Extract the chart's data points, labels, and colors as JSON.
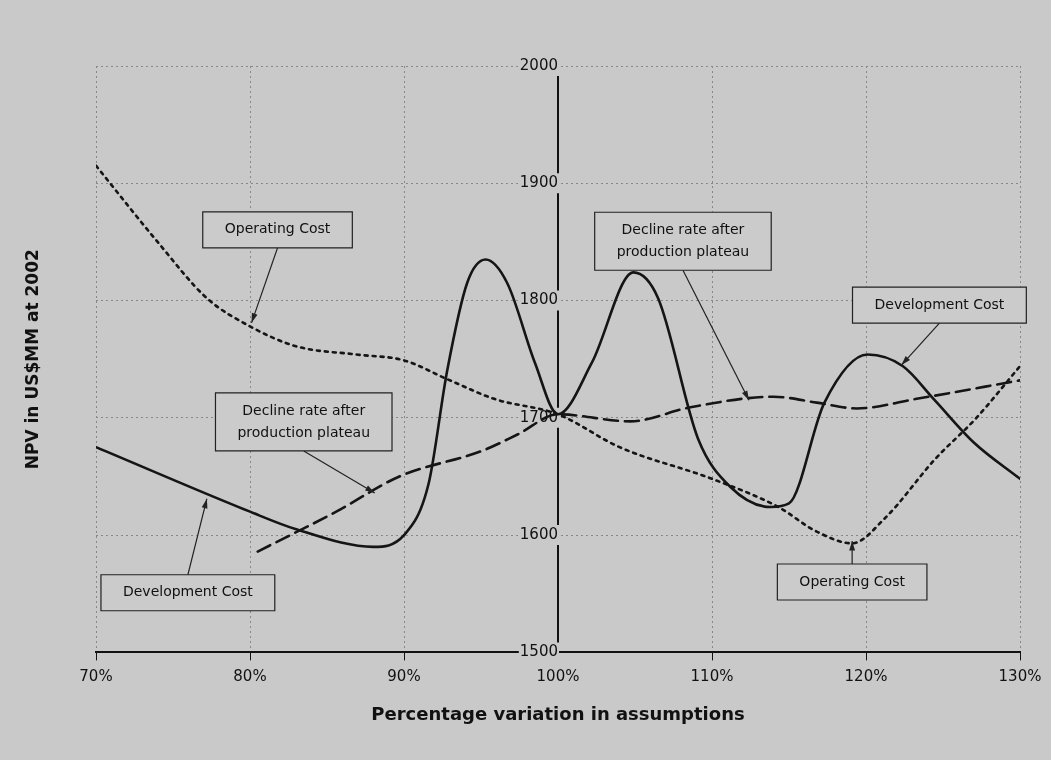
{
  "chart_data": {
    "type": "line",
    "xlabel": "Percentage variation in assumptions",
    "ylabel": "NPV in US$MM at 2002",
    "xlim": [
      70,
      130
    ],
    "xticks": [
      {
        "value": 70,
        "label": "70%"
      },
      {
        "value": 80,
        "label": "80%"
      },
      {
        "value": 90,
        "label": "90%"
      },
      {
        "value": 100,
        "label": "100%"
      },
      {
        "value": 110,
        "label": "110%"
      },
      {
        "value": 120,
        "label": "120%"
      },
      {
        "value": 130,
        "label": "130%"
      }
    ],
    "ylim": [
      1500,
      2000
    ],
    "yticks": [
      1500,
      1600,
      1700,
      1800,
      1900,
      2000
    ],
    "grid": true,
    "legend": false,
    "marker": "none",
    "series": [
      {
        "color": "#151515",
        "line_style": "solid",
        "x": [
          70,
          80,
          83,
          88,
          90,
          91.6,
          92.8,
          94.1,
          95.3,
          96.7,
          98.5,
          100,
          102.2,
          104.9,
          106.5,
          109.1,
          111.2,
          113.8,
          115,
          117.3,
          120.1,
          122.4,
          124.4,
          127,
          130
        ],
        "values": [
          1675,
          1620,
          1605,
          1590,
          1600,
          1644,
          1740,
          1815,
          1835,
          1815,
          1747,
          1703,
          1747,
          1824,
          1802,
          1682,
          1641,
          1624,
          1627,
          1713,
          1754,
          1744,
          1716,
          1679,
          1648
        ]
      },
      {
        "color": "#151515",
        "line_style": "dotted",
        "x": [
          70,
          74,
          77.2,
          80,
          83,
          86.9,
          90,
          92.8,
          95.9,
          100,
          104,
          110,
          114.3,
          116.8,
          119.1,
          121.2,
          124.5,
          127.1,
          130
        ],
        "values": [
          1915,
          1850,
          1802,
          1778,
          1761,
          1754,
          1749,
          1733,
          1716,
          1703,
          1675,
          1648,
          1624,
          1603,
          1593,
          1614,
          1665,
          1699,
          1744
        ]
      },
      {
        "color": "#151515",
        "line_style": "dashed",
        "x": [
          80.5,
          85.6,
          89.7,
          95.1,
          97.4,
          100,
          104.7,
          108.6,
          114,
          116.8,
          119.4,
          123.2,
          130
        ],
        "values": [
          1586,
          1620,
          1650,
          1672,
          1686,
          1703,
          1697,
          1709,
          1718,
          1713,
          1708,
          1716,
          1732
        ]
      }
    ],
    "annotations": [
      {
        "text": "Operating Cost",
        "x": 80.1,
        "y": 1781
      },
      {
        "text": "Development Cost",
        "x": 77.2,
        "y": 1631
      },
      {
        "text": "Decline rate after production plateau",
        "x": 88.1,
        "y": 1636
      },
      {
        "text": "Decline rate after production plateau",
        "x": 112.4,
        "y": 1715
      },
      {
        "text": "Development Cost",
        "x": 122.3,
        "y": 1745
      },
      {
        "text": "Operating Cost",
        "x": 119.1,
        "y": 1595
      }
    ]
  }
}
